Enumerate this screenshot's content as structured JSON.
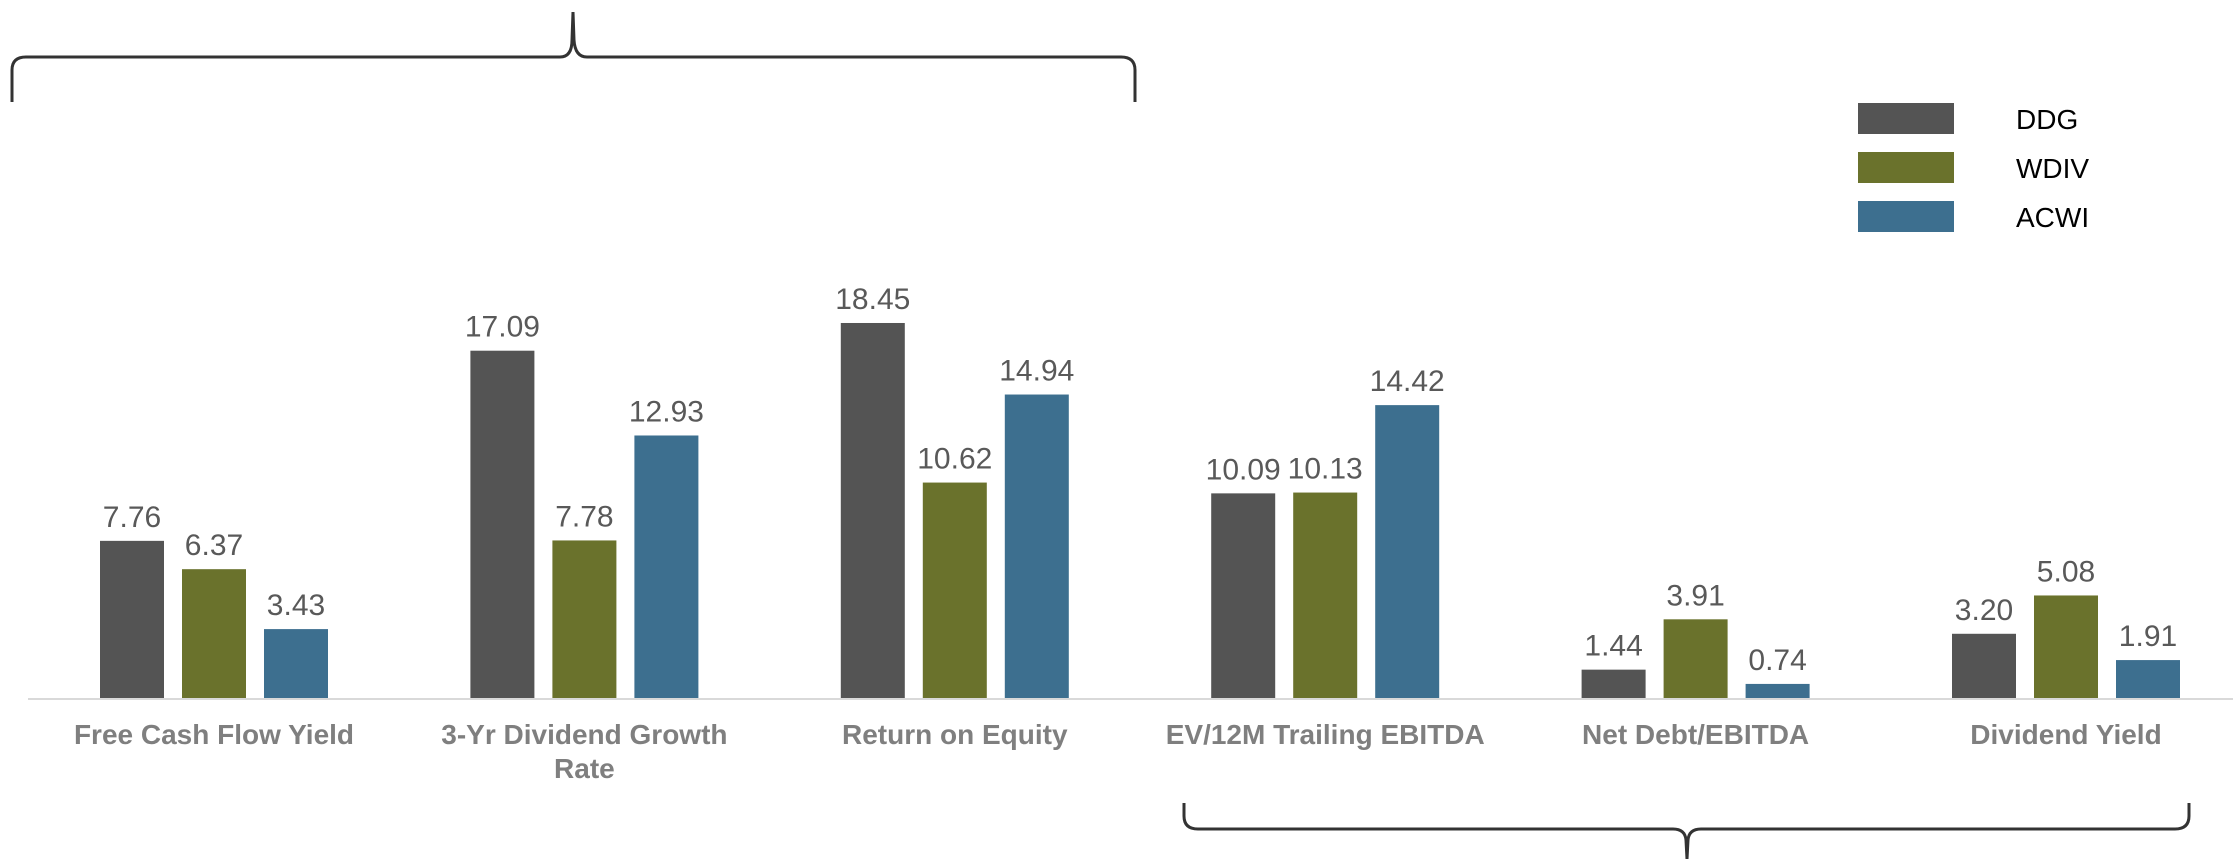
{
  "chart_data": {
    "type": "bar",
    "categories": [
      [
        "Free Cash Flow Yield"
      ],
      [
        "3-Yr Dividend Growth",
        "Rate"
      ],
      [
        "Return on Equity"
      ],
      [
        "EV/12M Trailing EBITDA"
      ],
      [
        "Net Debt/EBITDA"
      ],
      [
        "Dividend Yield"
      ]
    ],
    "series": [
      {
        "name": "DDG",
        "color": "#545454",
        "values": [
          7.76,
          17.09,
          18.45,
          10.09,
          1.44,
          3.2
        ]
      },
      {
        "name": "WDIV",
        "color": "#6a722c",
        "values": [
          6.37,
          7.78,
          10.62,
          10.13,
          3.91,
          5.08
        ]
      },
      {
        "name": "ACWI",
        "color": "#3d6f8f",
        "values": [
          3.43,
          12.93,
          14.94,
          14.42,
          0.74,
          1.91
        ]
      }
    ],
    "ylim": [
      0,
      20
    ],
    "legend": "top-right",
    "grid": false,
    "decimals": 2
  }
}
